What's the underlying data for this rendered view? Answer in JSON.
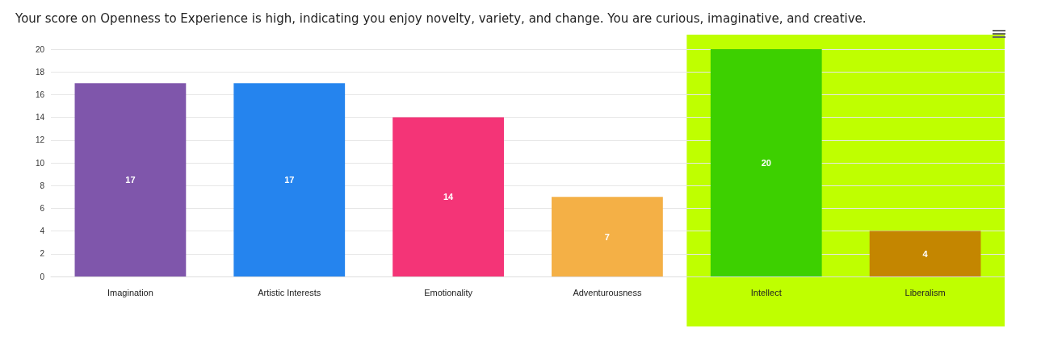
{
  "chart_data": {
    "type": "bar",
    "title": "Your score on Openness to Experience is high, indicating you enjoy novelty, variety, and change. You are curious, imaginative, and creative.",
    "categories": [
      "Imagination",
      "Artistic Interests",
      "Emotionality",
      "Adventurousness",
      "Intellect",
      "Liberalism"
    ],
    "values": [
      17,
      17,
      14,
      7,
      20,
      4
    ],
    "colors": [
      "#7f56ab",
      "#2584ee",
      "#f43477",
      "#f4b046",
      "#3dd000",
      "#c48600"
    ],
    "ylim": [
      0,
      20
    ],
    "yticks": [
      0,
      2,
      4,
      6,
      8,
      10,
      12,
      14,
      16,
      18,
      20
    ],
    "grid": "y",
    "data_labels": true,
    "bands": [
      {
        "axis": "x",
        "from": "Intellect",
        "to": "Liberalism",
        "color": "#bfff00"
      }
    ]
  }
}
